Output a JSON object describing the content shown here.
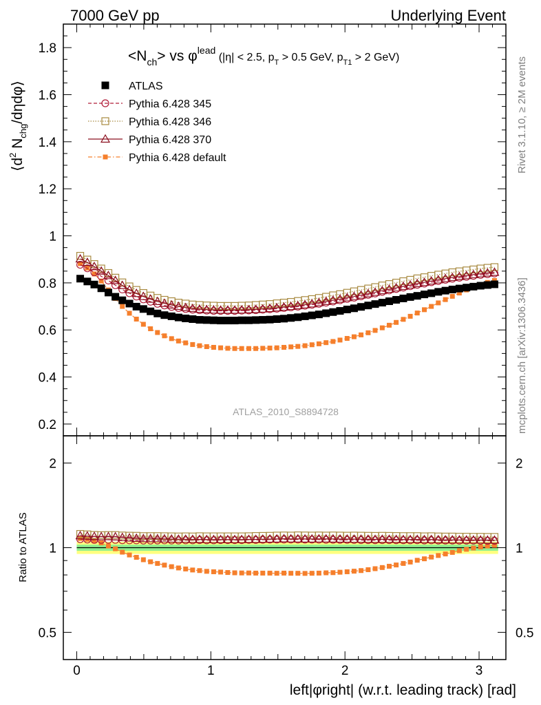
{
  "header": {
    "left": "7000 GeV pp",
    "right": "Underlying Event"
  },
  "side_labels": {
    "rivet": "Rivet 3.1.10, ≥ 2M events",
    "mcplots": "mcplots.cern.ch [arXiv:1306.3436]"
  },
  "chart_data": [
    {
      "type": "scatter",
      "panel": "main",
      "title_parts": {
        "main": "<N",
        "main_sub": "ch",
        "vs": "> vs φ",
        "vs_sup": "lead",
        "cuts1": " (|η| < 2.5, p",
        "cuts1_sub": "T",
        "cuts2": " > 0.5 GeV, p",
        "cuts2_sub": "T1",
        "cuts3": " > 2 GeV)"
      },
      "ylabel_parts": {
        "a": "⟨d",
        "a_sup": "2",
        "b": " N",
        "b_sub": "chg",
        "c": "/dηdφ⟩"
      },
      "watermark": "ATLAS_2010_S8894728",
      "xlim": [
        -0.1,
        3.2
      ],
      "ylim": [
        0.15,
        1.9
      ],
      "yticks": [
        0.2,
        0.4,
        0.6,
        0.8,
        1,
        1.2,
        1.4,
        1.6,
        1.8
      ],
      "ytick_labels": [
        "0.2",
        "0.4",
        "0.6",
        "0.8",
        "1",
        "1.2",
        "1.4",
        "1.6",
        "1.8"
      ],
      "legend_position": "top-left",
      "x": [
        0.026,
        0.079,
        0.131,
        0.183,
        0.236,
        0.288,
        0.34,
        0.393,
        0.445,
        0.497,
        0.55,
        0.602,
        0.654,
        0.707,
        0.759,
        0.812,
        0.864,
        0.916,
        0.969,
        1.021,
        1.073,
        1.126,
        1.178,
        1.23,
        1.283,
        1.335,
        1.387,
        1.44,
        1.492,
        1.545,
        1.597,
        1.649,
        1.702,
        1.754,
        1.806,
        1.859,
        1.911,
        1.963,
        2.016,
        2.068,
        2.12,
        2.173,
        2.225,
        2.278,
        2.33,
        2.382,
        2.435,
        2.487,
        2.539,
        2.592,
        2.644,
        2.696,
        2.749,
        2.801,
        2.853,
        2.906,
        2.958,
        3.011,
        3.063,
        3.115
      ],
      "series": [
        {
          "name": "ATLAS",
          "marker": "filled-square",
          "color": "#000000",
          "values": [
            0.818,
            0.806,
            0.793,
            0.777,
            0.759,
            0.741,
            0.726,
            0.712,
            0.699,
            0.689,
            0.679,
            0.67,
            0.663,
            0.658,
            0.653,
            0.649,
            0.646,
            0.643,
            0.642,
            0.641,
            0.64,
            0.64,
            0.64,
            0.641,
            0.641,
            0.642,
            0.643,
            0.644,
            0.646,
            0.648,
            0.651,
            0.654,
            0.658,
            0.662,
            0.666,
            0.671,
            0.676,
            0.681,
            0.687,
            0.692,
            0.698,
            0.704,
            0.71,
            0.716,
            0.722,
            0.728,
            0.734,
            0.74,
            0.745,
            0.751,
            0.756,
            0.762,
            0.767,
            0.772,
            0.776,
            0.78,
            0.784,
            0.788,
            0.791,
            0.794
          ]
        },
        {
          "name": "Pythia 6.428 345",
          "marker": "open-circle",
          "line": "dashed",
          "color": "#b01c38",
          "values": [
            0.877,
            0.862,
            0.845,
            0.828,
            0.81,
            0.79,
            0.772,
            0.756,
            0.742,
            0.73,
            0.72,
            0.711,
            0.704,
            0.698,
            0.693,
            0.689,
            0.686,
            0.684,
            0.682,
            0.681,
            0.681,
            0.681,
            0.681,
            0.682,
            0.683,
            0.684,
            0.686,
            0.688,
            0.69,
            0.693,
            0.696,
            0.699,
            0.703,
            0.707,
            0.711,
            0.716,
            0.721,
            0.726,
            0.732,
            0.737,
            0.743,
            0.749,
            0.755,
            0.762,
            0.768,
            0.774,
            0.78,
            0.786,
            0.792,
            0.797,
            0.803,
            0.808,
            0.813,
            0.818,
            0.822,
            0.826,
            0.83,
            0.834,
            0.837,
            0.84
          ]
        },
        {
          "name": "Pythia 6.428 346",
          "marker": "open-square",
          "line": "dotted",
          "color": "#a88a40",
          "values": [
            0.915,
            0.899,
            0.88,
            0.861,
            0.842,
            0.822,
            0.802,
            0.785,
            0.77,
            0.757,
            0.746,
            0.736,
            0.728,
            0.722,
            0.716,
            0.712,
            0.708,
            0.706,
            0.704,
            0.703,
            0.702,
            0.702,
            0.702,
            0.703,
            0.704,
            0.706,
            0.708,
            0.71,
            0.713,
            0.716,
            0.719,
            0.723,
            0.727,
            0.731,
            0.736,
            0.741,
            0.747,
            0.752,
            0.758,
            0.764,
            0.77,
            0.776,
            0.782,
            0.789,
            0.795,
            0.801,
            0.807,
            0.813,
            0.819,
            0.824,
            0.83,
            0.835,
            0.84,
            0.845,
            0.849,
            0.853,
            0.857,
            0.861,
            0.864,
            0.867
          ]
        },
        {
          "name": "Pythia 6.428 370",
          "marker": "open-triangle",
          "line": "solid",
          "color": "#8b0e1e",
          "values": [
            0.902,
            0.887,
            0.869,
            0.85,
            0.831,
            0.81,
            0.789,
            0.771,
            0.755,
            0.742,
            0.731,
            0.721,
            0.713,
            0.706,
            0.7,
            0.695,
            0.691,
            0.688,
            0.686,
            0.685,
            0.684,
            0.684,
            0.684,
            0.685,
            0.686,
            0.687,
            0.689,
            0.691,
            0.694,
            0.697,
            0.7,
            0.703,
            0.707,
            0.711,
            0.716,
            0.721,
            0.726,
            0.731,
            0.737,
            0.742,
            0.748,
            0.754,
            0.76,
            0.767,
            0.773,
            0.779,
            0.785,
            0.791,
            0.797,
            0.802,
            0.808,
            0.813,
            0.818,
            0.823,
            0.827,
            0.831,
            0.835,
            0.839,
            0.842,
            0.845
          ]
        },
        {
          "name": "Pythia 6.428 default",
          "marker": "filled-square-small",
          "line": "dash-dot",
          "color": "#f57f2c",
          "values": [
            0.882,
            0.863,
            0.838,
            0.808,
            0.77,
            0.734,
            0.7,
            0.671,
            0.646,
            0.624,
            0.605,
            0.589,
            0.575,
            0.563,
            0.553,
            0.545,
            0.538,
            0.533,
            0.529,
            0.526,
            0.524,
            0.522,
            0.521,
            0.521,
            0.521,
            0.521,
            0.522,
            0.523,
            0.524,
            0.526,
            0.528,
            0.53,
            0.533,
            0.537,
            0.541,
            0.546,
            0.551,
            0.557,
            0.564,
            0.571,
            0.579,
            0.588,
            0.598,
            0.609,
            0.62,
            0.632,
            0.645,
            0.658,
            0.672,
            0.686,
            0.7,
            0.715,
            0.729,
            0.743,
            0.757,
            0.77,
            0.782,
            0.793,
            0.802,
            0.81
          ]
        }
      ]
    },
    {
      "type": "scatter",
      "panel": "ratio",
      "ylabel": "Ratio to ATLAS",
      "xlabel": "left|φright| (w.r.t. leading track) [rad]",
      "ylog": true,
      "ylim": [
        0.4,
        2.5
      ],
      "xlim": [
        -0.1,
        3.2
      ],
      "yticks": [
        0.5,
        1,
        2
      ],
      "ytick_labels": [
        "0.5",
        "1",
        "2"
      ],
      "xticks": [
        0,
        1,
        2,
        3
      ],
      "xtick_labels": [
        "0",
        "1",
        "2",
        "3"
      ],
      "uncertainty_bands": [
        {
          "low": 0.95,
          "high": 1.05,
          "color": "#ffff80"
        },
        {
          "low": 0.975,
          "high": 1.025,
          "color": "#90f090"
        }
      ],
      "series": [
        {
          "name": "Pythia 6.428 345",
          "color": "#b01c38",
          "values": [
            1.072,
            1.069,
            1.066,
            1.066,
            1.067,
            1.066,
            1.063,
            1.062,
            1.062,
            1.06,
            1.06,
            1.061,
            1.062,
            1.061,
            1.061,
            1.062,
            1.062,
            1.064,
            1.062,
            1.062,
            1.064,
            1.064,
            1.064,
            1.064,
            1.066,
            1.065,
            1.067,
            1.068,
            1.068,
            1.069,
            1.069,
            1.069,
            1.068,
            1.068,
            1.068,
            1.067,
            1.067,
            1.066,
            1.066,
            1.065,
            1.064,
            1.064,
            1.063,
            1.064,
            1.064,
            1.063,
            1.063,
            1.062,
            1.063,
            1.061,
            1.062,
            1.06,
            1.06,
            1.06,
            1.059,
            1.059,
            1.059,
            1.058,
            1.058,
            1.058
          ]
        },
        {
          "name": "Pythia 6.428 346",
          "color": "#a88a40",
          "values": [
            1.119,
            1.115,
            1.11,
            1.108,
            1.109,
            1.109,
            1.105,
            1.103,
            1.102,
            1.099,
            1.099,
            1.099,
            1.098,
            1.097,
            1.096,
            1.097,
            1.096,
            1.098,
            1.097,
            1.097,
            1.097,
            1.097,
            1.097,
            1.097,
            1.098,
            1.1,
            1.101,
            1.102,
            1.104,
            1.105,
            1.104,
            1.106,
            1.105,
            1.104,
            1.105,
            1.104,
            1.105,
            1.104,
            1.103,
            1.104,
            1.103,
            1.102,
            1.101,
            1.102,
            1.101,
            1.1,
            1.099,
            1.099,
            1.099,
            1.097,
            1.098,
            1.096,
            1.095,
            1.095,
            1.094,
            1.094,
            1.093,
            1.093,
            1.092,
            1.092
          ]
        },
        {
          "name": "Pythia 6.428 370",
          "color": "#8b0e1e",
          "values": [
            1.103,
            1.1,
            1.096,
            1.094,
            1.095,
            1.093,
            1.087,
            1.083,
            1.08,
            1.077,
            1.077,
            1.076,
            1.075,
            1.073,
            1.072,
            1.071,
            1.07,
            1.07,
            1.069,
            1.069,
            1.069,
            1.069,
            1.069,
            1.069,
            1.07,
            1.07,
            1.072,
            1.073,
            1.074,
            1.076,
            1.075,
            1.075,
            1.074,
            1.074,
            1.075,
            1.075,
            1.074,
            1.073,
            1.073,
            1.072,
            1.072,
            1.071,
            1.07,
            1.071,
            1.071,
            1.07,
            1.069,
            1.069,
            1.07,
            1.068,
            1.069,
            1.067,
            1.066,
            1.066,
            1.066,
            1.065,
            1.065,
            1.065,
            1.064,
            1.064
          ]
        },
        {
          "name": "Pythia 6.428 default",
          "color": "#f57f2c",
          "values": [
            1.078,
            1.071,
            1.057,
            1.04,
            1.014,
            0.991,
            0.964,
            0.942,
            0.924,
            0.906,
            0.891,
            0.879,
            0.867,
            0.856,
            0.847,
            0.84,
            0.833,
            0.829,
            0.824,
            0.821,
            0.819,
            0.816,
            0.814,
            0.813,
            0.813,
            0.812,
            0.812,
            0.812,
            0.811,
            0.812,
            0.811,
            0.811,
            0.81,
            0.811,
            0.812,
            0.814,
            0.815,
            0.818,
            0.821,
            0.825,
            0.829,
            0.835,
            0.842,
            0.85,
            0.859,
            0.868,
            0.879,
            0.889,
            0.902,
            0.913,
            0.926,
            0.938,
            0.95,
            0.962,
            0.976,
            0.987,
            0.997,
            1.006,
            1.014,
            1.02
          ]
        }
      ]
    }
  ]
}
